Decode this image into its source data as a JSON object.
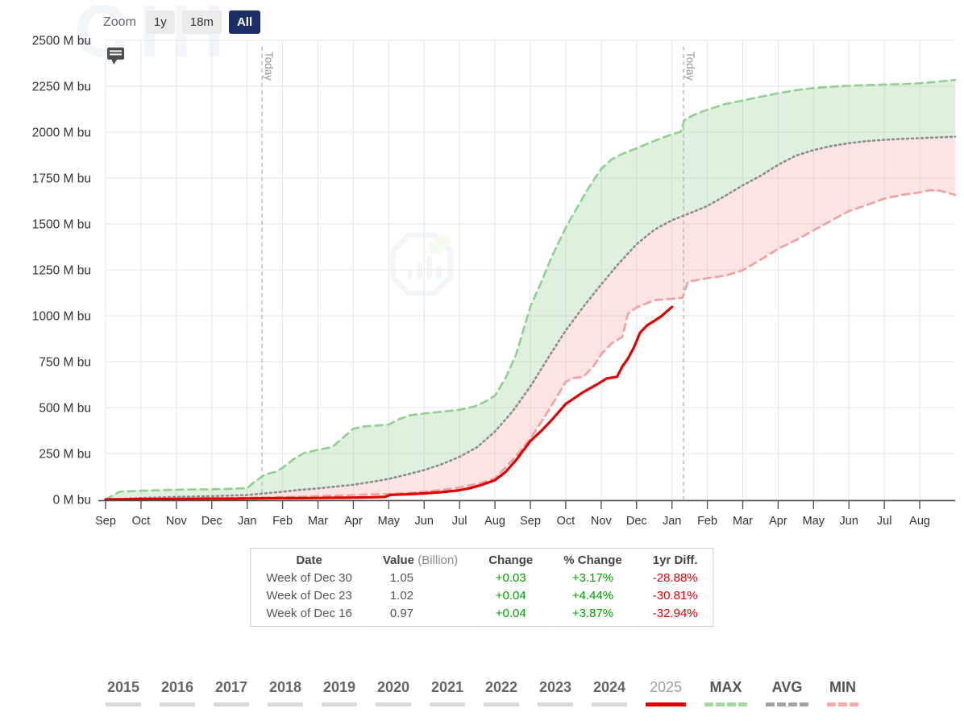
{
  "toolbar": {
    "zoom_label": "Zoom",
    "buttons": [
      {
        "label": "1y",
        "active": false
      },
      {
        "label": "18m",
        "active": false
      },
      {
        "label": "All",
        "active": true
      }
    ]
  },
  "chart_data": {
    "type": "area",
    "title": "",
    "unit": "M bu",
    "watermark": "CIH",
    "ylim": [
      0,
      2500
    ],
    "y_ticks": [
      0,
      250,
      500,
      750,
      1000,
      1250,
      1500,
      1750,
      2000,
      2250,
      2500
    ],
    "x_labels": [
      "Sep",
      "Oct",
      "Nov",
      "Dec",
      "Jan",
      "Feb",
      "Mar",
      "Apr",
      "May",
      "Jun",
      "Jul",
      "Aug",
      "Sep",
      "Oct",
      "Nov",
      "Dec",
      "Jan",
      "Feb",
      "Mar",
      "Apr",
      "May",
      "Jun",
      "Jul",
      "Aug"
    ],
    "x_months_total": 24,
    "grid": true,
    "legend_position": "bottom",
    "today_markers": [
      {
        "label": "Today",
        "month": 4.42
      },
      {
        "label": "Today",
        "month": 16.33
      }
    ],
    "bands": [
      {
        "upper": "MAX",
        "lower": "AVG",
        "color": "rgba(150,205,148,0.30)"
      },
      {
        "upper": "AVG",
        "lower": "MIN",
        "color": "rgba(246,166,166,0.30)"
      }
    ],
    "series": [
      {
        "name": "MAX",
        "color": "#8fd08f",
        "dash": "9 6",
        "width": 2.6,
        "points": [
          [
            0,
            0
          ],
          [
            0.4,
            42
          ],
          [
            1,
            48
          ],
          [
            1.5,
            50
          ],
          [
            2,
            53
          ],
          [
            2.5,
            55
          ],
          [
            3,
            55
          ],
          [
            3.5,
            58
          ],
          [
            4,
            62
          ],
          [
            4.2,
            95
          ],
          [
            4.5,
            135
          ],
          [
            4.8,
            150
          ],
          [
            5,
            172
          ],
          [
            5.3,
            218
          ],
          [
            5.6,
            252
          ],
          [
            6,
            270
          ],
          [
            6.4,
            285
          ],
          [
            6.7,
            335
          ],
          [
            7,
            385
          ],
          [
            7.3,
            398
          ],
          [
            7.7,
            403
          ],
          [
            8,
            408
          ],
          [
            8.3,
            438
          ],
          [
            8.6,
            458
          ],
          [
            9,
            468
          ],
          [
            9.5,
            478
          ],
          [
            10,
            488
          ],
          [
            10.4,
            505
          ],
          [
            10.7,
            530
          ],
          [
            11,
            565
          ],
          [
            11.3,
            662
          ],
          [
            11.6,
            790
          ],
          [
            12,
            1050
          ],
          [
            12.3,
            1180
          ],
          [
            12.6,
            1320
          ],
          [
            13,
            1480
          ],
          [
            13.3,
            1582
          ],
          [
            13.6,
            1682
          ],
          [
            14,
            1800
          ],
          [
            14.3,
            1852
          ],
          [
            14.6,
            1882
          ],
          [
            15,
            1912
          ],
          [
            15.5,
            1952
          ],
          [
            16,
            1988
          ],
          [
            16.25,
            2002
          ],
          [
            16.35,
            2065
          ],
          [
            16.6,
            2092
          ],
          [
            17,
            2122
          ],
          [
            17.5,
            2152
          ],
          [
            18,
            2172
          ],
          [
            18.5,
            2192
          ],
          [
            19,
            2212
          ],
          [
            19.5,
            2228
          ],
          [
            20,
            2240
          ],
          [
            20.5,
            2247
          ],
          [
            21,
            2252
          ],
          [
            21.5,
            2256
          ],
          [
            22,
            2259
          ],
          [
            22.5,
            2262
          ],
          [
            23,
            2266
          ],
          [
            23.5,
            2274
          ],
          [
            24,
            2284
          ]
        ]
      },
      {
        "name": "AVG",
        "color": "#8c8c8c",
        "dash": "2 4",
        "width": 2.6,
        "points": [
          [
            0,
            0
          ],
          [
            0.5,
            4
          ],
          [
            1,
            8
          ],
          [
            1.5,
            11
          ],
          [
            2,
            14
          ],
          [
            2.5,
            16
          ],
          [
            3,
            18
          ],
          [
            3.5,
            21
          ],
          [
            4,
            24
          ],
          [
            4.5,
            33
          ],
          [
            5,
            42
          ],
          [
            5.5,
            52
          ],
          [
            6,
            60
          ],
          [
            6.5,
            70
          ],
          [
            7,
            80
          ],
          [
            7.5,
            95
          ],
          [
            8,
            112
          ],
          [
            8.5,
            135
          ],
          [
            9,
            160
          ],
          [
            9.5,
            192
          ],
          [
            10,
            232
          ],
          [
            10.5,
            285
          ],
          [
            11,
            370
          ],
          [
            11.5,
            480
          ],
          [
            12,
            615
          ],
          [
            12.5,
            770
          ],
          [
            13,
            920
          ],
          [
            13.5,
            1050
          ],
          [
            14,
            1170
          ],
          [
            14.5,
            1285
          ],
          [
            15,
            1390
          ],
          [
            15.5,
            1468
          ],
          [
            16,
            1520
          ],
          [
            16.5,
            1558
          ],
          [
            17,
            1598
          ],
          [
            17.5,
            1652
          ],
          [
            18,
            1710
          ],
          [
            18.5,
            1762
          ],
          [
            19,
            1822
          ],
          [
            19.5,
            1872
          ],
          [
            20,
            1902
          ],
          [
            20.5,
            1924
          ],
          [
            21,
            1940
          ],
          [
            21.5,
            1951
          ],
          [
            22,
            1958
          ],
          [
            22.5,
            1963
          ],
          [
            23,
            1967
          ],
          [
            23.5,
            1971
          ],
          [
            24,
            1975
          ]
        ]
      },
      {
        "name": "MIN",
        "color": "#f49e9e",
        "dash": "9 6",
        "width": 2.6,
        "points": [
          [
            0,
            0
          ],
          [
            0.5,
            2
          ],
          [
            1,
            3
          ],
          [
            1.5,
            4
          ],
          [
            2,
            5
          ],
          [
            2.5,
            6
          ],
          [
            3,
            7
          ],
          [
            3.5,
            8
          ],
          [
            4,
            9
          ],
          [
            4.5,
            11
          ],
          [
            5,
            13
          ],
          [
            5.5,
            15
          ],
          [
            6,
            18
          ],
          [
            6.5,
            21
          ],
          [
            7,
            24
          ],
          [
            7.5,
            27
          ],
          [
            8,
            30
          ],
          [
            8.5,
            35
          ],
          [
            9,
            42
          ],
          [
            9.5,
            52
          ],
          [
            10,
            65
          ],
          [
            10.5,
            85
          ],
          [
            11,
            115
          ],
          [
            11.5,
            215
          ],
          [
            12,
            330
          ],
          [
            12.5,
            480
          ],
          [
            13,
            640
          ],
          [
            13.2,
            660
          ],
          [
            13.5,
            668
          ],
          [
            13.8,
            730
          ],
          [
            14,
            790
          ],
          [
            14.3,
            850
          ],
          [
            14.6,
            885
          ],
          [
            14.75,
            1010
          ],
          [
            15,
            1045
          ],
          [
            15.5,
            1085
          ],
          [
            16,
            1092
          ],
          [
            16.3,
            1098
          ],
          [
            16.45,
            1185
          ],
          [
            17,
            1205
          ],
          [
            17.5,
            1218
          ],
          [
            18,
            1248
          ],
          [
            18.5,
            1305
          ],
          [
            19,
            1365
          ],
          [
            19.5,
            1412
          ],
          [
            20,
            1465
          ],
          [
            20.5,
            1518
          ],
          [
            21,
            1570
          ],
          [
            21.5,
            1602
          ],
          [
            22,
            1638
          ],
          [
            22.5,
            1658
          ],
          [
            23,
            1672
          ],
          [
            23.3,
            1684
          ],
          [
            23.6,
            1680
          ],
          [
            24,
            1658
          ]
        ]
      },
      {
        "name": "2025",
        "color": "#e00000",
        "dash": "",
        "width": 3.2,
        "points": [
          [
            0,
            0
          ],
          [
            0.5,
            1
          ],
          [
            1,
            2
          ],
          [
            1.5,
            2
          ],
          [
            2,
            3
          ],
          [
            2.5,
            3
          ],
          [
            3,
            4
          ],
          [
            3.5,
            4
          ],
          [
            4,
            5
          ],
          [
            4.5,
            6
          ],
          [
            5,
            7
          ],
          [
            5.5,
            7
          ],
          [
            6,
            8
          ],
          [
            6.5,
            9
          ],
          [
            7,
            10
          ],
          [
            7.5,
            12
          ],
          [
            7.9,
            14
          ],
          [
            8.05,
            25
          ],
          [
            8.5,
            28
          ],
          [
            9,
            33
          ],
          [
            9.5,
            40
          ],
          [
            10,
            50
          ],
          [
            10.3,
            62
          ],
          [
            10.6,
            78
          ],
          [
            11,
            105
          ],
          [
            11.3,
            150
          ],
          [
            11.6,
            215
          ],
          [
            12,
            318
          ],
          [
            12.3,
            372
          ],
          [
            12.6,
            432
          ],
          [
            13,
            520
          ],
          [
            13.5,
            585
          ],
          [
            13.9,
            628
          ],
          [
            14.15,
            658
          ],
          [
            14.45,
            668
          ],
          [
            14.6,
            724
          ],
          [
            14.76,
            768
          ],
          [
            14.92,
            825
          ],
          [
            15.1,
            908
          ],
          [
            15.3,
            948
          ],
          [
            15.5,
            972
          ],
          [
            15.7,
            998
          ],
          [
            16,
            1048
          ]
        ]
      }
    ]
  },
  "table": {
    "headers": [
      {
        "label": "Date"
      },
      {
        "label": "Value",
        "sub": "(Billion)"
      },
      {
        "label": "Change"
      },
      {
        "label": "% Change"
      },
      {
        "label": "1yr Diff."
      }
    ],
    "rows": [
      {
        "date": "Week of Dec 30",
        "value": "1.05",
        "change": "+0.03",
        "pct_change": "+3.17%",
        "yr_diff": "-28.88%"
      },
      {
        "date": "Week of Dec 23",
        "value": "1.02",
        "change": "+0.04",
        "pct_change": "+4.44%",
        "yr_diff": "-30.81%"
      },
      {
        "date": "Week of Dec 16",
        "value": "0.97",
        "change": "+0.04",
        "pct_change": "+3.87%",
        "yr_diff": "-32.94%"
      }
    ]
  },
  "legend": {
    "years": [
      "2015",
      "2016",
      "2017",
      "2018",
      "2019",
      "2020",
      "2021",
      "2022",
      "2023",
      "2024"
    ],
    "current": {
      "label": "2025",
      "color": "#e00000"
    },
    "stats": [
      {
        "label": "MAX",
        "color": "#a5d7a5",
        "segments": 4
      },
      {
        "label": "AVG",
        "color": "#a3a3a3",
        "segments": 4
      },
      {
        "label": "MIN",
        "color": "#f5a8a8",
        "segments": 3
      }
    ]
  },
  "colors": {
    "accent_active": "#1b2f66",
    "current_year_line": "#e00000",
    "max_line": "#8fd08f",
    "avg_line": "#8c8c8c",
    "min_line": "#f49e9e",
    "positive": "#00a000",
    "negative": "#e00000"
  }
}
